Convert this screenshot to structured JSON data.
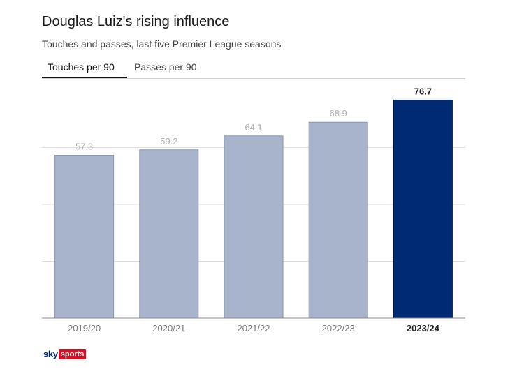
{
  "header": {
    "title": "Douglas Luiz's rising influence",
    "subtitle": "Touches and passes, last five Premier League seasons"
  },
  "tabs": [
    {
      "label": "Touches per 90",
      "active": true
    },
    {
      "label": "Passes per 90",
      "active": false
    }
  ],
  "chart_data": {
    "type": "bar",
    "title": "Douglas Luiz's rising influence",
    "subtitle": "Touches and passes, last five Premier League seasons",
    "metric": "Touches per 90",
    "categories": [
      "2019/20",
      "2020/21",
      "2021/22",
      "2022/23",
      "2023/24"
    ],
    "values": [
      57.3,
      59.2,
      64.1,
      68.9,
      76.7
    ],
    "highlight_index": 4,
    "colors": {
      "default": "#a8b4cc",
      "highlight": "#002a74",
      "default_label": "#aeaeae",
      "highlight_label": "#222222",
      "grid": "#dddddd",
      "axis": "#888888"
    },
    "ylim": [
      0,
      80
    ],
    "grid": true,
    "xlabel": "",
    "ylabel": ""
  },
  "footer": {
    "logo_sky": "sky",
    "logo_sports": "sports"
  }
}
